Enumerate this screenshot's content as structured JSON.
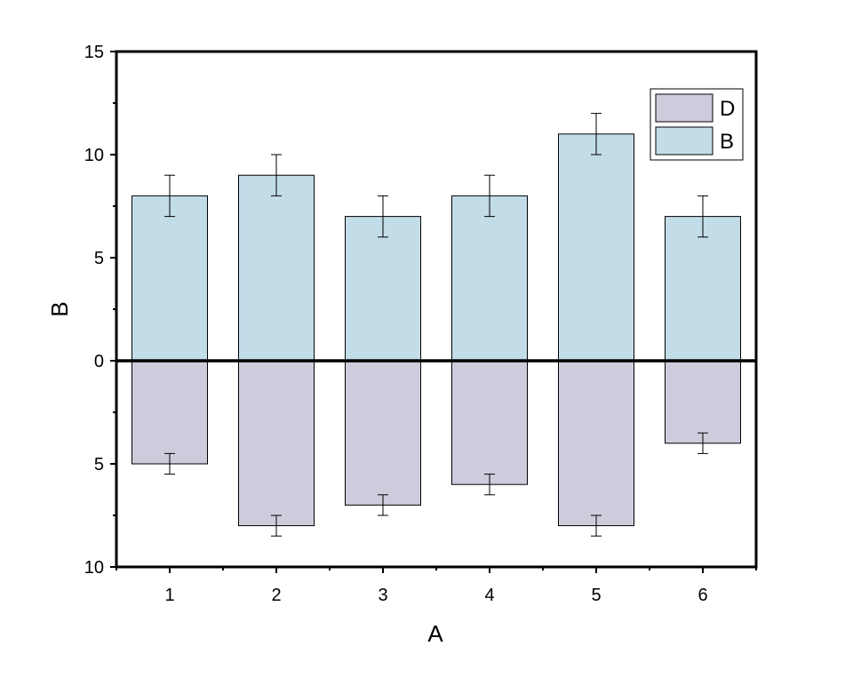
{
  "chart_data": {
    "type": "bar",
    "xlabel": "A",
    "ylabel": "B",
    "categories": [
      "1",
      "2",
      "3",
      "4",
      "5",
      "6"
    ],
    "ylim": [
      -10,
      15
    ],
    "yticks": [
      15,
      10,
      5,
      0,
      -5,
      -10
    ],
    "ytick_labels": [
      "15",
      "10",
      "5",
      "0",
      "5",
      "10"
    ],
    "grid": false,
    "legend_position": "top-right",
    "series": [
      {
        "name": "B",
        "color": "#c2dde8",
        "values": [
          8,
          9,
          7,
          8,
          11,
          7
        ],
        "errors": [
          1,
          1,
          1,
          1,
          1,
          1
        ]
      },
      {
        "name": "D",
        "color": "#d0cbdc",
        "values": [
          -5,
          -8,
          -7,
          -6,
          -8,
          -4
        ],
        "errors": [
          0.5,
          0.5,
          0.5,
          0.5,
          0.5,
          0.5
        ]
      }
    ],
    "legend_order": [
      "D",
      "B"
    ]
  }
}
